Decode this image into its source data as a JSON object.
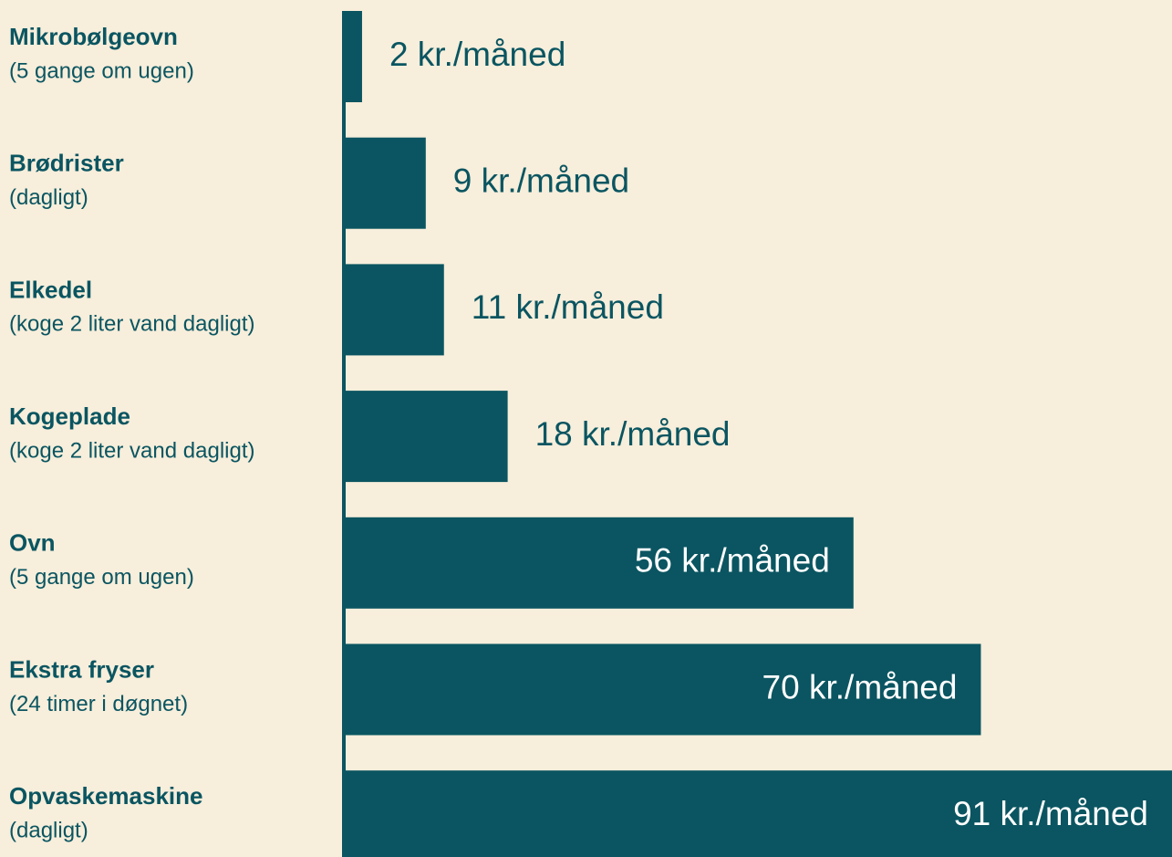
{
  "chart_data": {
    "type": "bar",
    "orientation": "horizontal",
    "color": "#0a5561",
    "categories": [
      "Mikrobølgeovn",
      "Brødrister",
      "Elkedel",
      "Kogeplade",
      "Ovn",
      "Ekstra fryser",
      "Opvaskemaskine"
    ],
    "category_notes": [
      "(5 gange om ugen)",
      "(dagligt)",
      "(koge 2 liter vand dagligt)",
      "(koge 2 liter vand dagligt)",
      "(5 gange om ugen)",
      "(24 timer i døgnet)",
      "(dagligt)"
    ],
    "values": [
      2,
      9,
      11,
      18,
      56,
      70,
      91
    ],
    "value_labels": [
      "2 kr./måned",
      "9 kr./måned",
      "11 kr./måned",
      "18 kr./måned",
      "56 kr./måned",
      "70 kr./måned",
      "91 kr./måned"
    ]
  }
}
